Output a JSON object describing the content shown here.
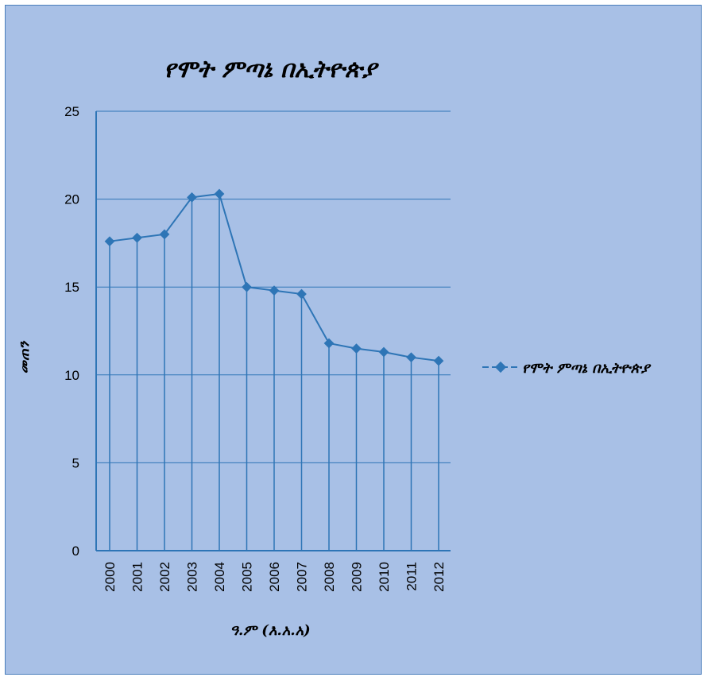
{
  "chart_data": {
    "type": "line",
    "title": "የሞት ምጣኔ በኢትዮጵያ",
    "xlabel": "ዓ.ም (እ.አ.አ)",
    "ylabel": "መጠን",
    "categories": [
      "2000",
      "2001",
      "2002",
      "2003",
      "2004",
      "2005",
      "2006",
      "2007",
      "2008",
      "2009",
      "2010",
      "2011",
      "2012"
    ],
    "series": [
      {
        "name": "የሞት ምጣኔ በኢትዮጵያ",
        "values": [
          17.6,
          17.8,
          18.0,
          20.1,
          20.3,
          15.0,
          14.8,
          14.6,
          11.8,
          11.5,
          11.3,
          11.0,
          10.8
        ]
      }
    ],
    "ylim": [
      0,
      25
    ],
    "yticks": [
      "0",
      "5",
      "10",
      "15",
      "20",
      "25"
    ],
    "grid": true,
    "drop_lines": true,
    "legend_position": "right",
    "colors": {
      "series": "#2e75b6",
      "grid": "#2e75b6",
      "background": "#a8c0e6"
    }
  }
}
